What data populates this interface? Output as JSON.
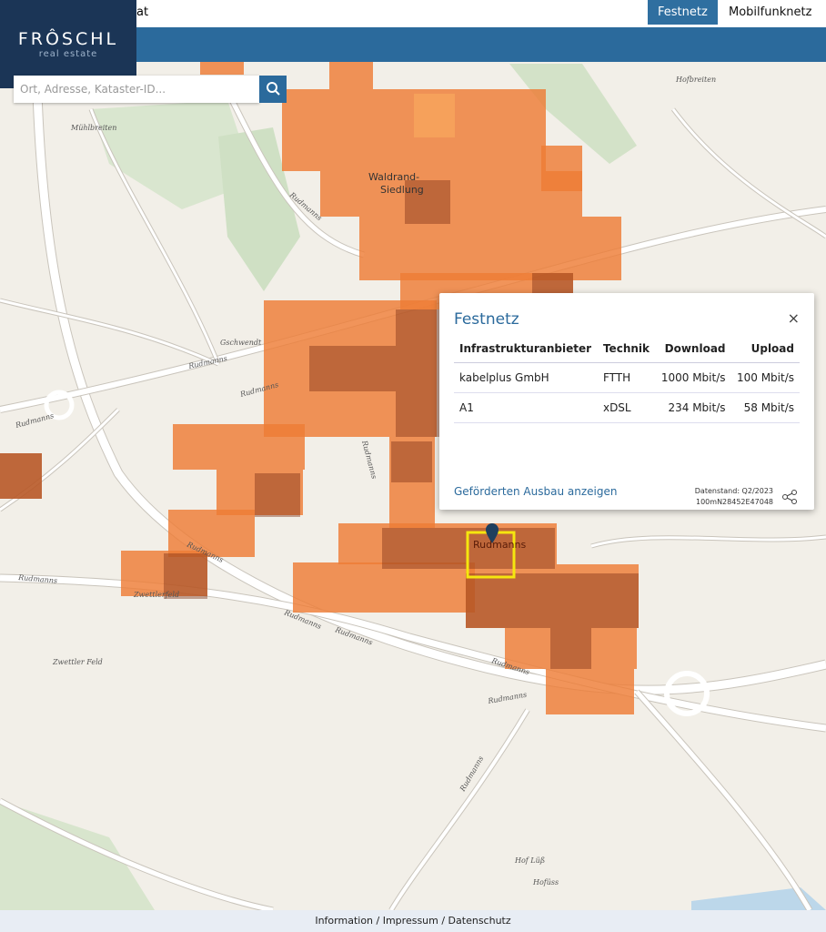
{
  "header": {
    "title_fragment": "at",
    "logo": {
      "name": "FRÔSCHL",
      "tagline": "real estate"
    },
    "tabs": [
      {
        "label": "Festnetz"
      },
      {
        "label": "Mobilfunknetz"
      }
    ]
  },
  "search": {
    "placeholder": "Ort, Adresse, Kataster-ID..."
  },
  "map": {
    "labels": [
      "Hofbreiten",
      "Mühlbreiten",
      "Waldrand-",
      "Siedlung",
      "Rudmanns",
      "Gschwendt",
      "Rudmanns",
      "Rudmanns",
      "Rudmanns",
      "Rudmanns",
      "Rudmanns",
      "Rudmanns",
      "Zwettlerfeld",
      "Rudmanns",
      "Rudmanns",
      "Rudmanns",
      "Rudmanns",
      "Zwettler Feld",
      "Rudmanns",
      "Hof Lüß",
      "Hofüss",
      "Rudmanns"
    ]
  },
  "popup": {
    "title": "Festnetz",
    "close": "×",
    "table": {
      "headers": [
        "Infrastrukturanbieter",
        "Technik",
        "Download",
        "Upload"
      ],
      "rows": [
        [
          "kabelplus GmbH",
          "FTTH",
          "1000 Mbit/s",
          "100 Mbit/s"
        ],
        [
          "A1",
          "xDSL",
          "234 Mbit/s",
          "58 Mbit/s"
        ]
      ]
    },
    "link": "Geförderten Ausbau anzeigen",
    "data_status": "Datenstand: Q2/2023",
    "cell_id": "100mN28452E47048"
  },
  "footer": {
    "links": "Information / Impressum / Datenschutz"
  }
}
